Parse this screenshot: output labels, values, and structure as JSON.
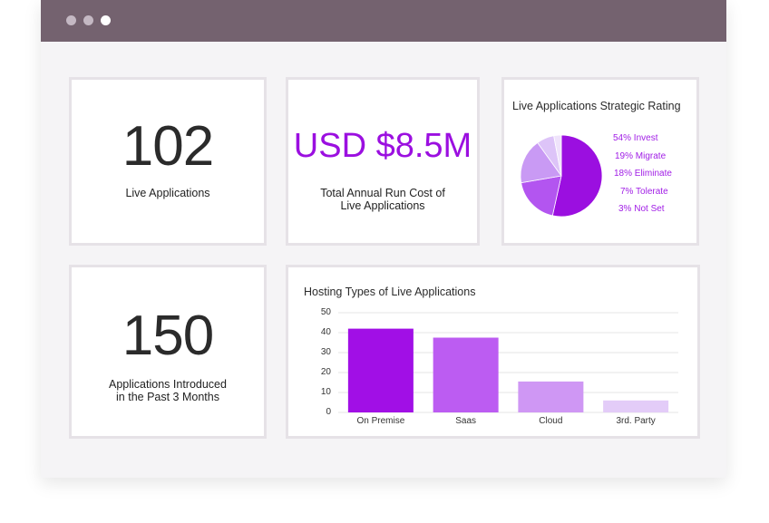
{
  "window": {
    "controls": [
      {
        "name": "close",
        "color": "#c4b8c3"
      },
      {
        "name": "minimize",
        "color": "#c4b8c3"
      },
      {
        "name": "maximize",
        "color": "#ffffff"
      }
    ]
  },
  "kpis": {
    "live_apps": {
      "value": "102",
      "label": "Live Applications"
    },
    "run_cost": {
      "value": "USD $8.5M",
      "label_line1": "Total Annual Run Cost of",
      "label_line2": "Live Applications",
      "color": "#9b0fe0"
    },
    "introduced": {
      "value": "150",
      "label_line1": "Applications Introduced",
      "label_line2": "in the Past 3 Months"
    }
  },
  "pie_card": {
    "title": "Live Applications Strategic Rating"
  },
  "bar_card": {
    "title": "Hosting Types of Live Applications"
  },
  "chart_data": [
    {
      "type": "pie",
      "title": "Live Applications Strategic Rating",
      "slices": [
        {
          "label": "54% Invest",
          "value": 54,
          "color": "#9b0fe0"
        },
        {
          "label": "19% Migrate",
          "value": 19,
          "color": "#b355f0"
        },
        {
          "label": "18% Eliminate",
          "value": 18,
          "color": "#c99af4"
        },
        {
          "label": "7% Tolerate",
          "value": 7,
          "color": "#ddc4f8"
        },
        {
          "label": "3% Not Set",
          "value": 3,
          "color": "#efe3fb"
        }
      ]
    },
    {
      "type": "bar",
      "title": "Hosting Types of Live Applications",
      "categories": [
        "On Premise",
        "Saas",
        "Cloud",
        "3rd. Party"
      ],
      "values": [
        42,
        37.5,
        15.5,
        6
      ],
      "colors": [
        "#a10fe6",
        "#bc5cf2",
        "#cf97f4",
        "#e3ccf8"
      ],
      "ylim": [
        0,
        50
      ],
      "yticks": [
        0,
        10,
        20,
        30,
        40,
        50
      ],
      "grid": true
    }
  ]
}
